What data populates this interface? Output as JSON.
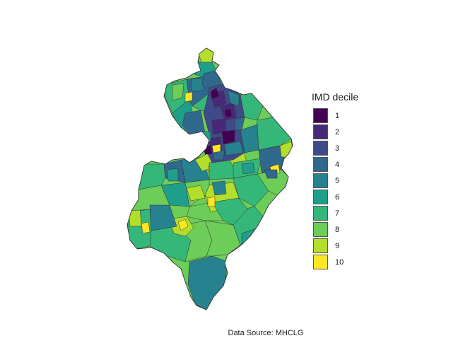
{
  "legend": {
    "title": "IMD decile",
    "items": [
      {
        "label": "1",
        "color": "#440154"
      },
      {
        "label": "2",
        "color": "#482878"
      },
      {
        "label": "3",
        "color": "#3e4a89"
      },
      {
        "label": "4",
        "color": "#31688e"
      },
      {
        "label": "5",
        "color": "#26828e"
      },
      {
        "label": "6",
        "color": "#1f9e89"
      },
      {
        "label": "7",
        "color": "#35b779"
      },
      {
        "label": "8",
        "color": "#6dcd59"
      },
      {
        "label": "9",
        "color": "#b4de2c"
      },
      {
        "label": "10",
        "color": "#fde725"
      }
    ]
  },
  "caption": "Data Source: MHCLG",
  "colors": {
    "border": "#333333",
    "background": "#ffffff"
  }
}
